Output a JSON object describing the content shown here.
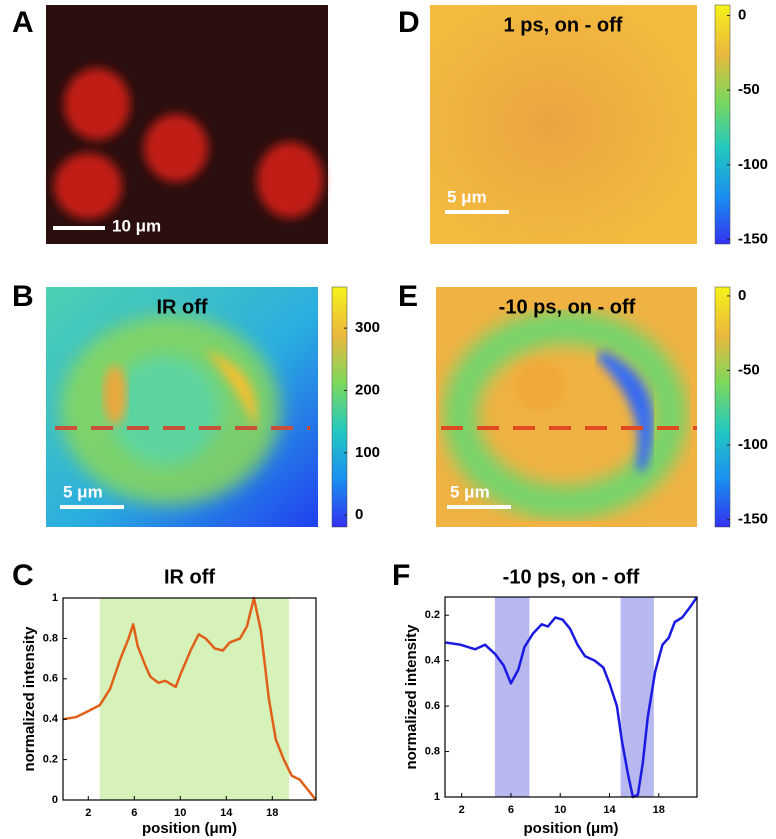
{
  "images": [
    {
      "letter": "A",
      "scale_bar": "10 μm"
    },
    {
      "letter": "B",
      "title": "IR off",
      "scale_bar": "5 μm",
      "colorbar": {
        "lim": [
          -19,
          366
        ],
        "ticks": [
          0,
          100,
          200,
          300
        ]
      }
    },
    {
      "letter": "D",
      "title": "1 ps, on - off",
      "scale_bar": "5 μm",
      "colorbar": {
        "lim": [
          -153,
          7
        ],
        "ticks": [
          0,
          -50,
          -100,
          -150
        ]
      }
    },
    {
      "letter": "E",
      "title": "-10 ps, on - off",
      "scale_bar": "5 μm",
      "colorbar": {
        "lim": [
          -155,
          6
        ],
        "ticks": [
          0,
          -50,
          -100,
          -150
        ]
      }
    }
  ],
  "chart_data": [
    {
      "type": "line",
      "panel_label": "C",
      "title": "IR off",
      "x_label": "position (μm)",
      "y_label": "normalized intensity",
      "x": [
        -0.2,
        0.9,
        2,
        3,
        3.9,
        4.8,
        5.5,
        5.9,
        6.3,
        7,
        7.4,
        8.1,
        8.7,
        9.6,
        10,
        10.9,
        11.6,
        12.2,
        13,
        13.7,
        14.3,
        15.2,
        15.8,
        16.4,
        17,
        17.7,
        18.3,
        19,
        19.7,
        20.4,
        21.8
      ],
      "values": [
        0.4,
        0.41,
        0.44,
        0.47,
        0.55,
        0.7,
        0.8,
        0.87,
        0.76,
        0.66,
        0.61,
        0.58,
        0.59,
        0.56,
        0.62,
        0.74,
        0.82,
        0.8,
        0.75,
        0.74,
        0.78,
        0.8,
        0.86,
        1,
        0.84,
        0.5,
        0.3,
        0.2,
        0.12,
        0.1,
        0
      ],
      "color": "#e0601a",
      "shaded": [
        [
          3.0,
          19.45
        ]
      ],
      "shade_color": "#d6f2b8",
      "xlim": [
        -0.2,
        21.8
      ],
      "xticks": [
        2,
        6,
        10,
        14,
        18
      ],
      "ylim": [
        0,
        1
      ],
      "yticks": [
        0,
        0.2,
        0.4,
        0.6,
        0.8,
        1
      ]
    },
    {
      "type": "line",
      "panel_label": "F",
      "title": "-10 ps, on - off",
      "x_label": "position (μm)",
      "y_label": "normalized intensity",
      "x": [
        0.7,
        1.9,
        3.1,
        3.9,
        4.7,
        5.4,
        6.0,
        6.6,
        7.1,
        7.8,
        8.5,
        9.0,
        9.6,
        10.2,
        10.8,
        11.4,
        12.0,
        12.8,
        13.5,
        14.0,
        14.6,
        15.0,
        15.5,
        15.9,
        16.3,
        16.7,
        17.1,
        17.7,
        18.3,
        18.8,
        19.3,
        19.9,
        20.6,
        21.1
      ],
      "values": [
        0.32,
        0.33,
        0.35,
        0.33,
        0.37,
        0.42,
        0.5,
        0.44,
        0.34,
        0.28,
        0.24,
        0.25,
        0.21,
        0.22,
        0.26,
        0.33,
        0.38,
        0.4,
        0.43,
        0.5,
        0.6,
        0.75,
        0.9,
        1.0,
        0.99,
        0.85,
        0.65,
        0.45,
        0.33,
        0.3,
        0.23,
        0.21,
        0.16,
        0.12
      ],
      "color": "#1a1ae0",
      "shaded": [
        [
          4.7,
          7.5
        ],
        [
          14.9,
          17.6
        ]
      ],
      "shade_color": "#b8b8f0",
      "xlim": [
        0.65,
        21.1
      ],
      "xticks": [
        2,
        6,
        10,
        14,
        18
      ],
      "ylim": [
        0.12,
        1
      ],
      "yticks": [
        0.2,
        0.4,
        0.6,
        0.8,
        1
      ],
      "y_reversed": true
    }
  ]
}
